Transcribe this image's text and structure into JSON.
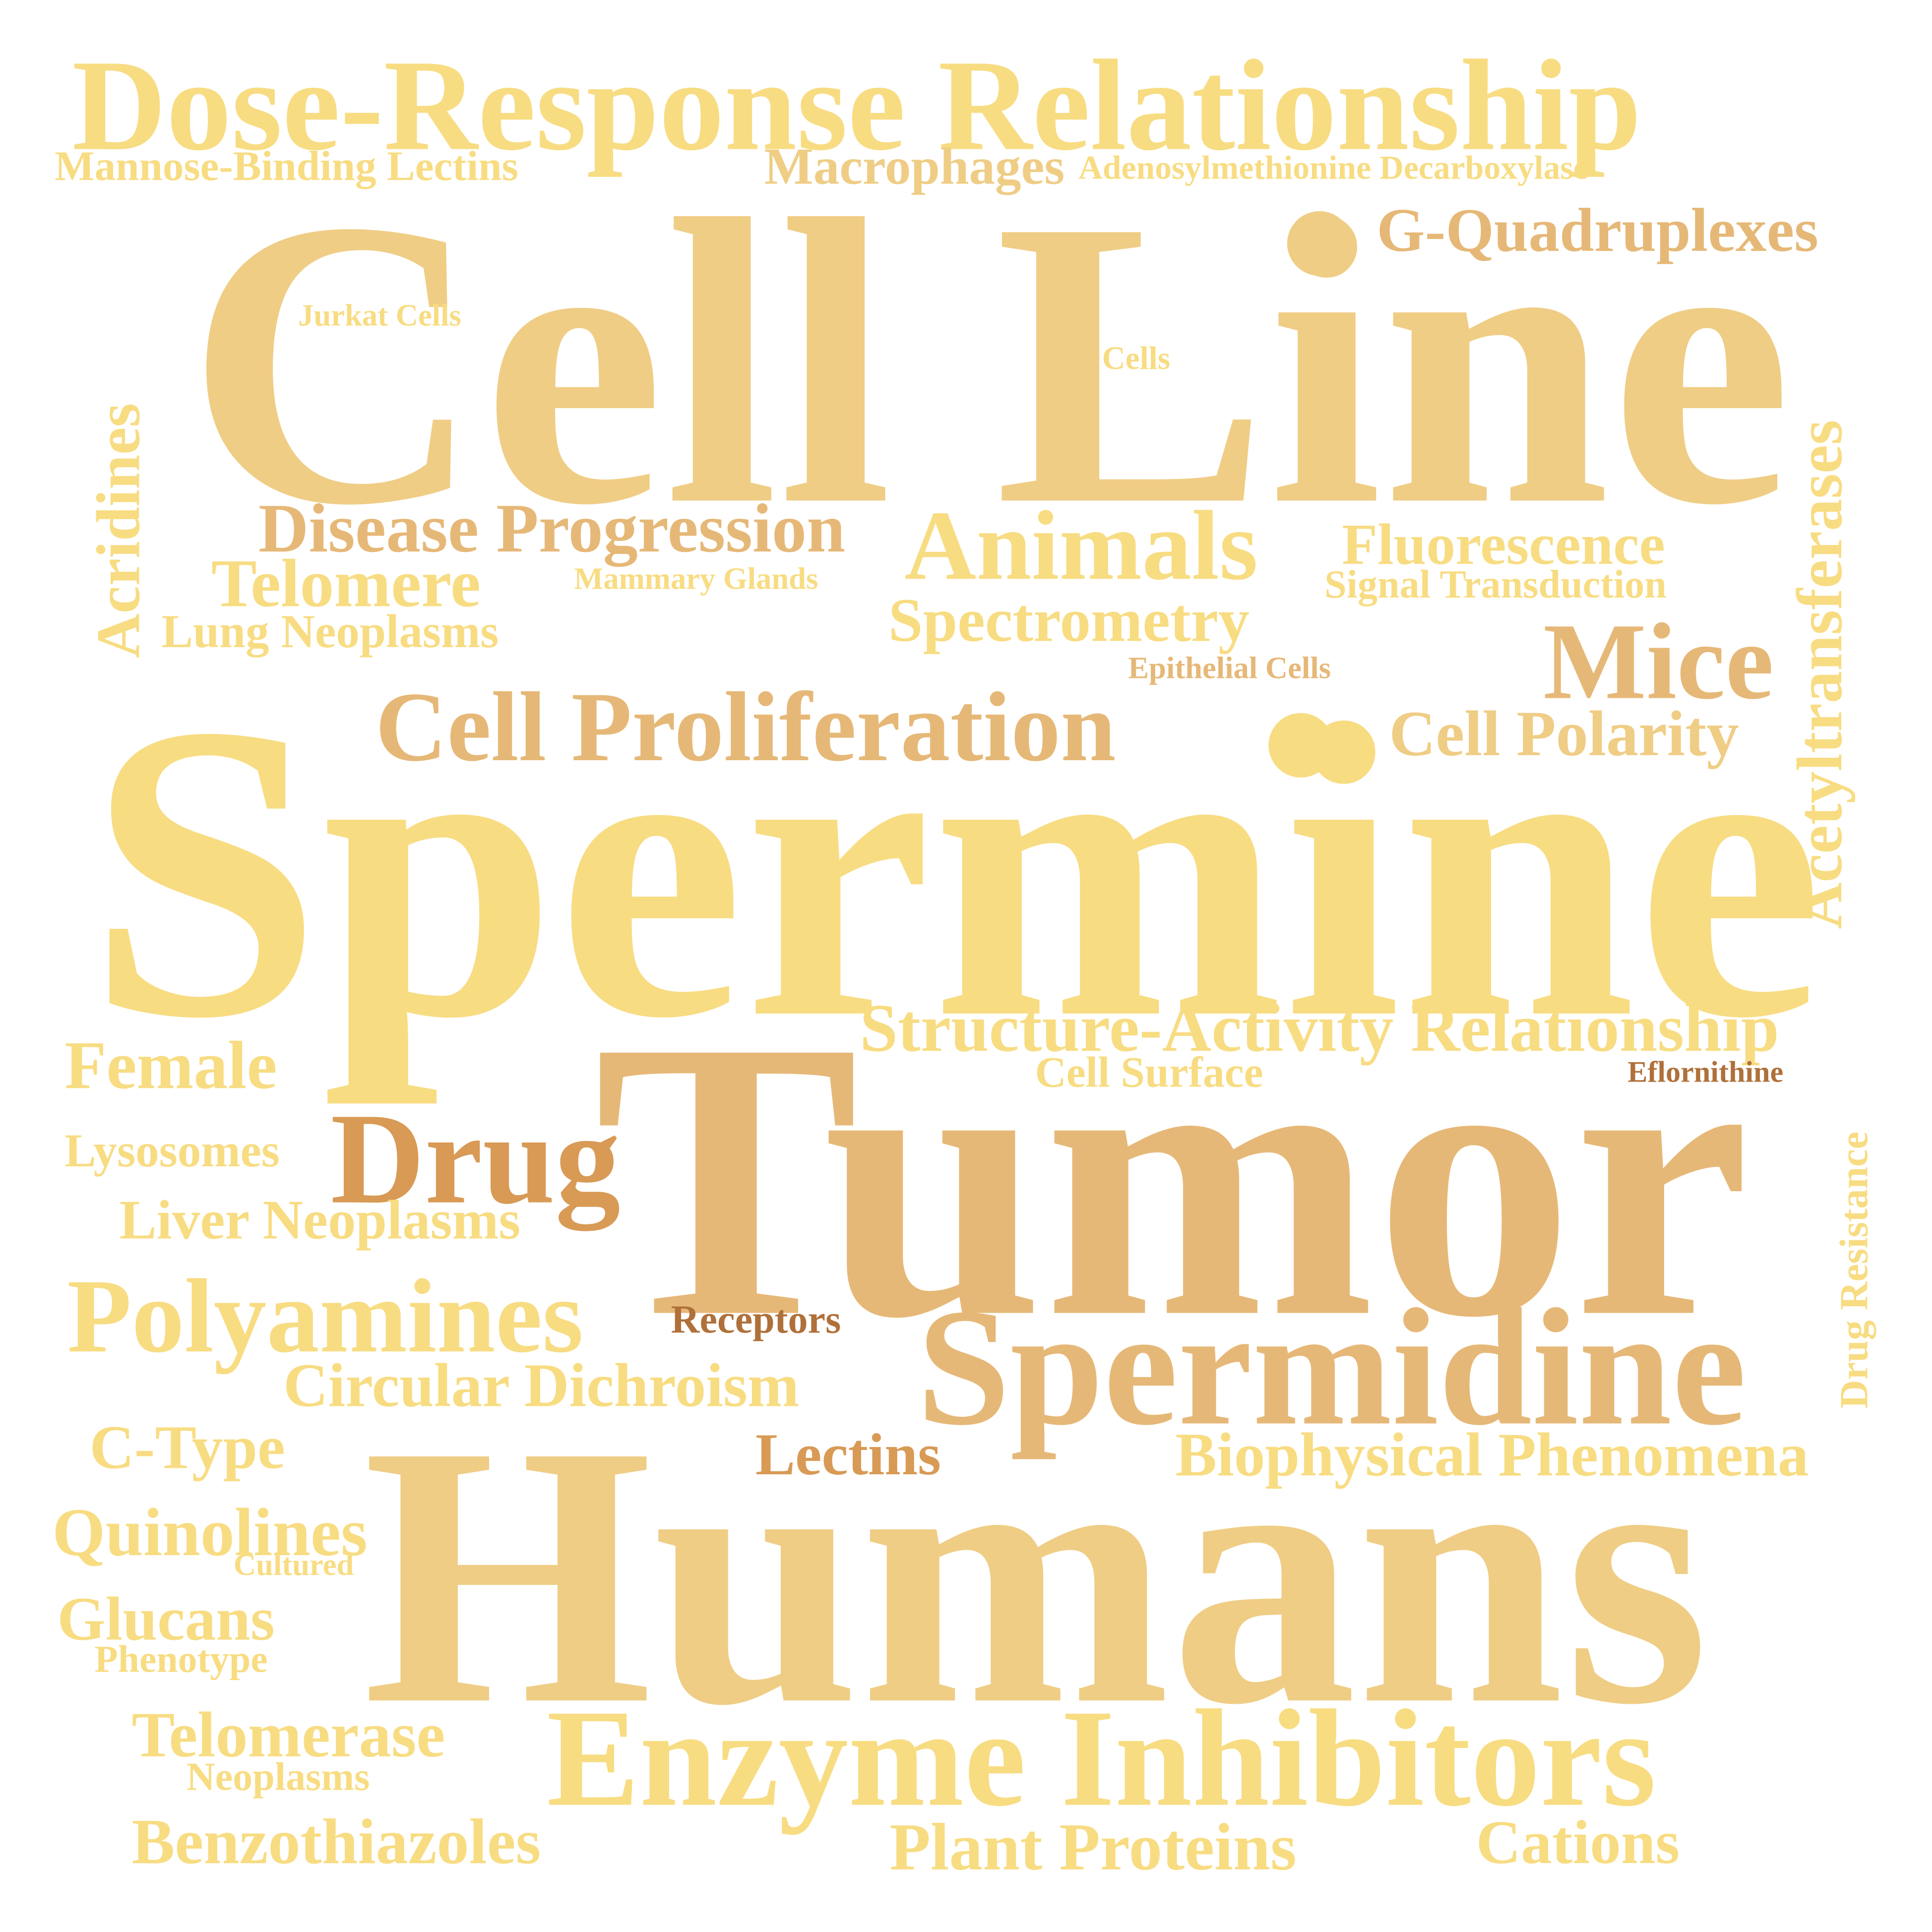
{
  "palette": {
    "light": "#f8dc82",
    "mid": "#efcd85",
    "tan": "#e6b877",
    "deep": "#d89a55",
    "brown": "#b0703a"
  },
  "words": {
    "dose_response": "Dose-Response Relationship",
    "mannose": "Mannose-Binding Lectins",
    "macrophages": "Macrophages",
    "adenosyl": "Adenosylmethionine Decarboxylase",
    "g_quad": "G-Quadruplexes",
    "cell_line": "Cell Line",
    "jurkat": "Jurkat Cells",
    "cells": "Cells",
    "acridines": "Acridines",
    "acetyltransferases": "Acetyltransferases",
    "disease_prog": "Disease Progression",
    "telomere": "Telomere",
    "mammary": "Mammary Glands",
    "lung": "Lung Neoplasms",
    "animals": "Animals",
    "fluorescence": "Fluorescence",
    "signal": "Signal Transduction",
    "spectrometry": "Spectrometry",
    "epithelial": "Epithelial Cells",
    "mice": "Mice",
    "cell_prolif": "Cell Proliferation",
    "cell_polarity": "Cell Polarity",
    "spermine": "Spermine",
    "struct_act": "Structure-Activity Relationship",
    "cell_surface": "Cell Surface",
    "eflornithine": "Eflornithine",
    "female": "Female",
    "drug": "Drug",
    "tumor": "Tumor",
    "lysosomes": "Lysosomes",
    "liver": "Liver Neoplasms",
    "drug_resistance": "Drug Resistance",
    "polyamines": "Polyamines",
    "receptors": "Receptors",
    "spermidine": "Spermidine",
    "circular": "Circular Dichroism",
    "c_type": "C-Type",
    "lectins": "Lectins",
    "biophysical": "Biophysical Phenomena",
    "quinolines": "Quinolines",
    "cultured": "Cultured",
    "humans": "Humans",
    "glucans": "Glucans",
    "phenotype": "Phenotype",
    "telomerase": "Telomerase",
    "neoplasms": "Neoplasms",
    "enzyme": "Enzyme Inhibitors",
    "benzothiazoles": "Benzothiazoles",
    "plant": "Plant Proteins",
    "cations": "Cations"
  }
}
